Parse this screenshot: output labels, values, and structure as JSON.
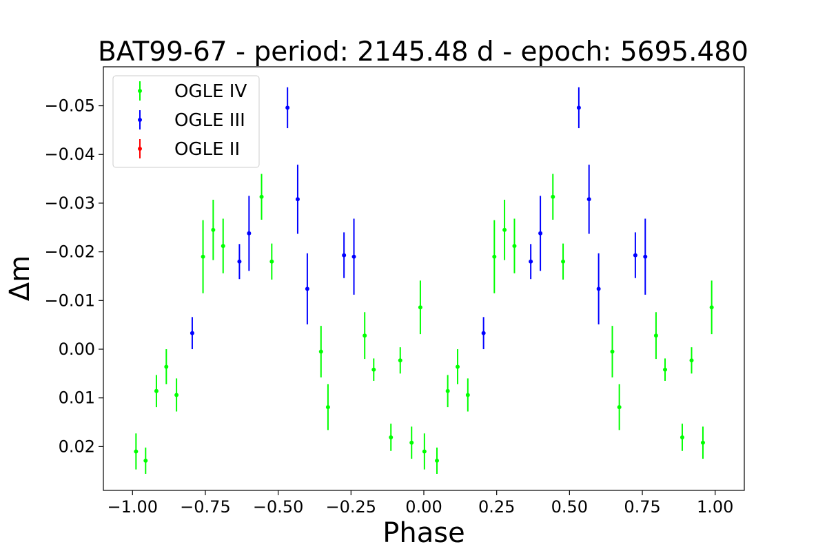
{
  "chart_data": {
    "type": "scatter",
    "title": "BAT99-67 - period: 2145.48 d - epoch: 5695.480",
    "xlabel": "Phase",
    "ylabel": "Δm",
    "xlim": [
      -1.1,
      1.1
    ],
    "ylim": [
      0.029,
      -0.058
    ],
    "y_inverted": true,
    "xticks": [
      -1.0,
      -0.75,
      -0.5,
      -0.25,
      0.0,
      0.25,
      0.5,
      0.75,
      1.0
    ],
    "xtick_labels": [
      "−1.00",
      "−0.75",
      "−0.50",
      "−0.25",
      "0.00",
      "0.25",
      "0.50",
      "0.75",
      "1.00"
    ],
    "yticks": [
      -0.05,
      -0.04,
      -0.03,
      -0.02,
      -0.01,
      0.0,
      0.01,
      0.02
    ],
    "ytick_labels": [
      "−0.05",
      "−0.04",
      "−0.03",
      "−0.02",
      "−0.01",
      "0.00",
      "0.01",
      "0.02"
    ],
    "legend_position": "top-left",
    "grid": false,
    "series": [
      {
        "name": "OGLE IV",
        "color": "#00ff00",
        "points": [
          {
            "x": -0.988,
            "y": 0.021,
            "err": 0.0037
          },
          {
            "x": -0.955,
            "y": 0.0229,
            "err": 0.0027
          },
          {
            "x": -0.918,
            "y": 0.0086,
            "err": 0.0033
          },
          {
            "x": -0.884,
            "y": 0.0036,
            "err": 0.0036
          },
          {
            "x": -0.849,
            "y": 0.0094,
            "err": 0.0034
          },
          {
            "x": -0.758,
            "y": -0.019,
            "err": 0.0075
          },
          {
            "x": -0.723,
            "y": -0.0245,
            "err": 0.0062
          },
          {
            "x": -0.689,
            "y": -0.0212,
            "err": 0.0056
          },
          {
            "x": -0.557,
            "y": -0.0313,
            "err": 0.0047
          },
          {
            "x": -0.522,
            "y": -0.018,
            "err": 0.0037
          },
          {
            "x": -0.353,
            "y": 0.0005,
            "err": 0.0053
          },
          {
            "x": -0.329,
            "y": 0.0119,
            "err": 0.0047
          },
          {
            "x": -0.203,
            "y": -0.0028,
            "err": 0.0048
          },
          {
            "x": -0.172,
            "y": 0.0042,
            "err": 0.0023
          },
          {
            "x": -0.113,
            "y": 0.0181,
            "err": 0.0028
          },
          {
            "x": -0.081,
            "y": 0.0023,
            "err": 0.0027
          },
          {
            "x": -0.042,
            "y": 0.0192,
            "err": 0.0033
          },
          {
            "x": -0.012,
            "y": -0.0086,
            "err": 0.0055
          },
          {
            "x": 0.002,
            "y": 0.021,
            "err": 0.0037
          },
          {
            "x": 0.045,
            "y": 0.0229,
            "err": 0.0027
          },
          {
            "x": 0.082,
            "y": 0.0086,
            "err": 0.0033
          },
          {
            "x": 0.116,
            "y": 0.0036,
            "err": 0.0036
          },
          {
            "x": 0.151,
            "y": 0.0094,
            "err": 0.0034
          },
          {
            "x": 0.242,
            "y": -0.019,
            "err": 0.0075
          },
          {
            "x": 0.277,
            "y": -0.0245,
            "err": 0.0062
          },
          {
            "x": 0.311,
            "y": -0.0212,
            "err": 0.0056
          },
          {
            "x": 0.443,
            "y": -0.0313,
            "err": 0.0047
          },
          {
            "x": 0.478,
            "y": -0.018,
            "err": 0.0037
          },
          {
            "x": 0.647,
            "y": 0.0005,
            "err": 0.0053
          },
          {
            "x": 0.671,
            "y": 0.0119,
            "err": 0.0047
          },
          {
            "x": 0.797,
            "y": -0.0028,
            "err": 0.0048
          },
          {
            "x": 0.828,
            "y": 0.0042,
            "err": 0.0023
          },
          {
            "x": 0.887,
            "y": 0.0181,
            "err": 0.0028
          },
          {
            "x": 0.919,
            "y": 0.0023,
            "err": 0.0027
          },
          {
            "x": 0.958,
            "y": 0.0192,
            "err": 0.0033
          },
          {
            "x": 0.988,
            "y": -0.0086,
            "err": 0.0055
          }
        ]
      },
      {
        "name": "OGLE III",
        "color": "#0000ff",
        "points": [
          {
            "x": -0.795,
            "y": -0.0033,
            "err": 0.0033
          },
          {
            "x": -0.633,
            "y": -0.018,
            "err": 0.0036
          },
          {
            "x": -0.6,
            "y": -0.0238,
            "err": 0.0077
          },
          {
            "x": -0.468,
            "y": -0.0496,
            "err": 0.0042
          },
          {
            "x": -0.433,
            "y": -0.0308,
            "err": 0.0071
          },
          {
            "x": -0.4,
            "y": -0.0124,
            "err": 0.0073
          },
          {
            "x": -0.274,
            "y": -0.0193,
            "err": 0.0047
          },
          {
            "x": -0.24,
            "y": -0.019,
            "err": 0.0078
          },
          {
            "x": 0.205,
            "y": -0.0033,
            "err": 0.0033
          },
          {
            "x": 0.367,
            "y": -0.018,
            "err": 0.0036
          },
          {
            "x": 0.4,
            "y": -0.0238,
            "err": 0.0077
          },
          {
            "x": 0.532,
            "y": -0.0496,
            "err": 0.0042
          },
          {
            "x": 0.567,
            "y": -0.0308,
            "err": 0.0071
          },
          {
            "x": 0.6,
            "y": -0.0124,
            "err": 0.0073
          },
          {
            "x": 0.726,
            "y": -0.0193,
            "err": 0.0047
          },
          {
            "x": 0.76,
            "y": -0.019,
            "err": 0.0078
          }
        ]
      },
      {
        "name": "OGLE II",
        "color": "#ff0000",
        "points": []
      }
    ]
  }
}
